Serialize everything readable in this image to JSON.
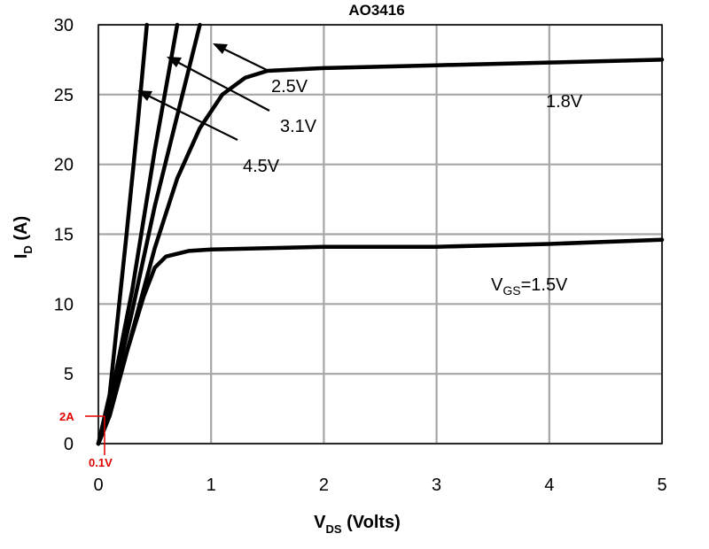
{
  "chart_data": {
    "type": "line",
    "title": "AO3416",
    "xlabel": {
      "main": "V",
      "sub": "DS",
      "rest": " (Volts)"
    },
    "ylabel": {
      "main": "I",
      "sub": "D",
      "rest": " (A)"
    },
    "xlim": [
      0,
      5
    ],
    "ylim": [
      0,
      30
    ],
    "xticks": [
      "0",
      "1",
      "2",
      "3",
      "4",
      "5"
    ],
    "yticks": [
      "0",
      "5",
      "10",
      "15",
      "20",
      "25",
      "30"
    ],
    "grid": true,
    "colors": {
      "curve": "#000000",
      "grid": "#a6a6a6",
      "marker": "#e00000"
    },
    "series": [
      {
        "name": "V_GS=1.5V",
        "points": [
          [
            0,
            0
          ],
          [
            0.1,
            2
          ],
          [
            0.25,
            6.5
          ],
          [
            0.4,
            10.5
          ],
          [
            0.5,
            12.6
          ],
          [
            0.6,
            13.4
          ],
          [
            0.8,
            13.8
          ],
          [
            1,
            13.9
          ],
          [
            1.5,
            14.0
          ],
          [
            2,
            14.1
          ],
          [
            3,
            14.1
          ],
          [
            4,
            14.3
          ],
          [
            5,
            14.6
          ]
        ]
      },
      {
        "name": "1.8V",
        "points": [
          [
            0,
            0
          ],
          [
            0.1,
            2
          ],
          [
            0.3,
            8
          ],
          [
            0.5,
            14
          ],
          [
            0.7,
            19
          ],
          [
            0.9,
            22.6
          ],
          [
            1.1,
            25
          ],
          [
            1.3,
            26.2
          ],
          [
            1.5,
            26.7
          ],
          [
            2,
            26.9
          ],
          [
            3,
            27.1
          ],
          [
            4,
            27.3
          ],
          [
            5,
            27.5
          ]
        ]
      },
      {
        "name": "2.5V",
        "points": [
          [
            0,
            0
          ],
          [
            0.1,
            2.5
          ],
          [
            0.3,
            9.5
          ],
          [
            0.5,
            17
          ],
          [
            0.7,
            23.5
          ],
          [
            0.9,
            30
          ]
        ]
      },
      {
        "name": "3.1V",
        "points": [
          [
            0,
            0
          ],
          [
            0.1,
            2.8
          ],
          [
            0.3,
            11
          ],
          [
            0.5,
            21
          ],
          [
            0.7,
            30
          ]
        ]
      },
      {
        "name": "4.5V",
        "points": [
          [
            0,
            0
          ],
          [
            0.1,
            3.5
          ],
          [
            0.25,
            15
          ],
          [
            0.35,
            23
          ],
          [
            0.43,
            30
          ]
        ]
      }
    ],
    "annotations": {
      "vgs_15": {
        "main": "V",
        "sub": "GS",
        "rest": "=1.5V"
      },
      "vgs_18": "1.8V",
      "vgs_25": "2.5V",
      "vgs_31": "3.1V",
      "vgs_45": "4.5V",
      "marker_current": "2A",
      "marker_voltage": "0.1V"
    }
  }
}
